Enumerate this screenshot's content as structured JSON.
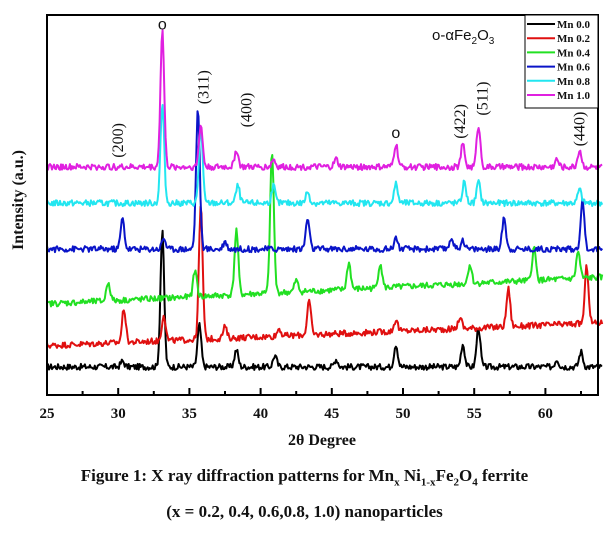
{
  "chart_data": {
    "type": "line",
    "title": "",
    "xlabel": "2θ Degree",
    "ylabel": "Intensity (a.u.)",
    "xlim": [
      25,
      64
    ],
    "ylim": [
      0,
      100
    ],
    "x_ticks": [
      25,
      30,
      35,
      40,
      45,
      50,
      55,
      60
    ],
    "x_minor_ticks": [
      27.5,
      32.5,
      37.5,
      42.5,
      47.5,
      52.5,
      57.5,
      62.5
    ],
    "grid": false,
    "legend_position": "top-right",
    "phase_label": {
      "prefix": "o-αFe",
      "sub1": "2",
      "mid": "O",
      "sub2": "3"
    },
    "annotations": [
      {
        "text": "o",
        "x": 33.1,
        "y": 97.5,
        "kind": "marker"
      },
      {
        "text": "(200)",
        "x": 30.0,
        "y": 67,
        "kind": "hkl"
      },
      {
        "text": "(311)",
        "x": 36.0,
        "y": 81,
        "kind": "hkl"
      },
      {
        "text": "(400)",
        "x": 39.0,
        "y": 75,
        "kind": "hkl"
      },
      {
        "text": "o",
        "x": 49.5,
        "y": 69,
        "kind": "marker"
      },
      {
        "text": "(422)",
        "x": 54.0,
        "y": 72,
        "kind": "hkl"
      },
      {
        "text": "(511)",
        "x": 55.6,
        "y": 78,
        "kind": "hkl"
      },
      {
        "text": "(440)",
        "x": 62.4,
        "y": 70,
        "kind": "hkl"
      }
    ],
    "series": [
      {
        "name": "Mn 0.0",
        "color": "#000000",
        "baseline": [
          7.4,
          7.4
        ],
        "peaks": [
          [
            30.3,
            1.5
          ],
          [
            33.1,
            35.5
          ],
          [
            35.7,
            11
          ],
          [
            38.3,
            4.5
          ],
          [
            41.0,
            3
          ],
          [
            45.3,
            2
          ],
          [
            49.5,
            6
          ],
          [
            54.2,
            6
          ],
          [
            55.3,
            10.5
          ],
          [
            60.8,
            2
          ],
          [
            62.5,
            4
          ]
        ]
      },
      {
        "name": "Mn 0.2",
        "color": "#e01010",
        "baseline": [
          13,
          19
        ],
        "peaks": [
          [
            30.4,
            9
          ],
          [
            33.2,
            7
          ],
          [
            35.8,
            35
          ],
          [
            37.5,
            3
          ],
          [
            41.3,
            2
          ],
          [
            43.4,
            9
          ],
          [
            49.5,
            3
          ],
          [
            54.0,
            3
          ],
          [
            57.4,
            10
          ],
          [
            62.9,
            15
          ]
        ]
      },
      {
        "name": "Mn 0.4",
        "color": "#22e022",
        "baseline": [
          24,
          31
        ],
        "peaks": [
          [
            29.3,
            5
          ],
          [
            35.4,
            7
          ],
          [
            38.3,
            17
          ],
          [
            40.8,
            37
          ],
          [
            42.5,
            3
          ],
          [
            46.2,
            7
          ],
          [
            48.4,
            6.5
          ],
          [
            54.7,
            5
          ],
          [
            59.2,
            8.5
          ],
          [
            62.3,
            7
          ]
        ]
      },
      {
        "name": "Mn 0.6",
        "color": "#0a14c8",
        "baseline": [
          38.4,
          38.4
        ],
        "peaks": [
          [
            30.3,
            8
          ],
          [
            33.2,
            3
          ],
          [
            35.6,
            37
          ],
          [
            37.5,
            2
          ],
          [
            43.3,
            8
          ],
          [
            49.5,
            3
          ],
          [
            53.4,
            3
          ],
          [
            54.2,
            2.5
          ],
          [
            57.1,
            8.5
          ],
          [
            62.6,
            12.5
          ]
        ]
      },
      {
        "name": "Mn 0.8",
        "color": "#22e6f0",
        "baseline": [
          50.5,
          50.5
        ],
        "peaks": [
          [
            33.1,
            26
          ],
          [
            35.8,
            20
          ],
          [
            38.4,
            4.5
          ],
          [
            40.9,
            4.5
          ],
          [
            43.3,
            3
          ],
          [
            49.5,
            5
          ],
          [
            54.3,
            5.5
          ],
          [
            55.3,
            5.5
          ],
          [
            62.4,
            3.5
          ]
        ]
      },
      {
        "name": "Mn 1.0",
        "color": "#e020e0",
        "baseline": [
          60,
          60
        ],
        "peaks": [
          [
            33.1,
            36
          ],
          [
            35.8,
            11
          ],
          [
            38.3,
            4.5
          ],
          [
            40.9,
            2
          ],
          [
            45.3,
            2
          ],
          [
            49.5,
            6
          ],
          [
            54.2,
            6
          ],
          [
            55.3,
            11
          ],
          [
            60.8,
            2
          ],
          [
            62.4,
            4.5
          ]
        ]
      }
    ]
  },
  "caption": {
    "line1_prefix": "Figure 1: X ray diffraction patterns for Mn",
    "line1_sub1": "x",
    "line1_mid": " Ni",
    "line1_sub2": "1-x",
    "line1_fe": "Fe",
    "line1_sub3": "2",
    "line1_o": "O",
    "line1_sub4": "4",
    "line1_suffix": " ferrite",
    "line2": "(x = 0.2, 0.4, 0.6,0.8, 1.0) nanoparticles"
  }
}
